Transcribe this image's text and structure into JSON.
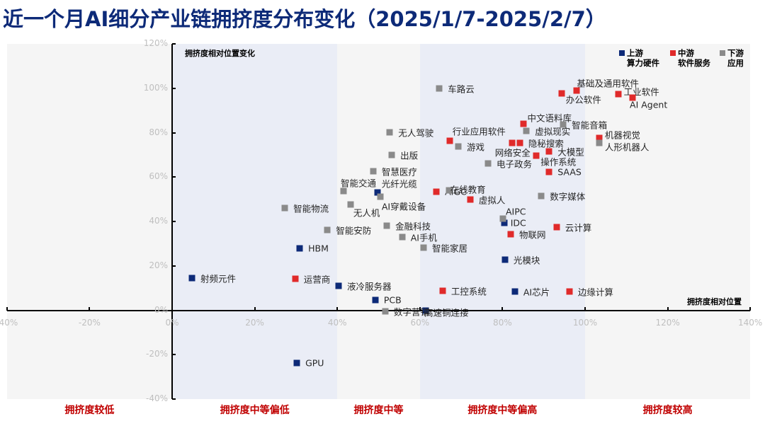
{
  "title": "近一个月AI细分产业链拥挤度分布变化（2025/1/7-2025/2/7）",
  "colors": {
    "upstream": "#0d2a78",
    "midstream": "#e02a2a",
    "downstream": "#8a8a8a",
    "band_light": "#f5f5f5",
    "band_blue": "#eaedf6",
    "zone_label": "#c00000"
  },
  "axes": {
    "y_title": "拥挤度相对位置变化",
    "x_title": "拥挤度相对位置",
    "x_ticks": [
      "-40%",
      "-20%",
      "0%",
      "20%",
      "40%",
      "60%",
      "80%",
      "100%",
      "120%",
      "140%"
    ],
    "y_ticks": [
      "120%",
      "100%",
      "80%",
      "60%",
      "40%",
      "20%",
      "0%",
      "-20%",
      "-40%"
    ]
  },
  "legend": [
    {
      "name": "上游",
      "sub": "算力硬件",
      "key": "upstream"
    },
    {
      "name": "中游",
      "sub": "软件服务",
      "key": "midstream"
    },
    {
      "name": "下游",
      "sub": "应用",
      "key": "downstream"
    }
  ],
  "zones": [
    {
      "label": "拥挤度较低",
      "x": -20
    },
    {
      "label": "拥挤度中等偏低",
      "x": 20
    },
    {
      "label": "拥挤度中等",
      "x": 50
    },
    {
      "label": "拥挤度中等偏高",
      "x": 80
    },
    {
      "label": "拥挤度较高",
      "x": 120
    }
  ],
  "chart_data": {
    "type": "scatter",
    "title": "近一个月AI细分产业链拥挤度分布变化（2025/1/7-2025/2/7）",
    "xlabel": "拥挤度相对位置",
    "ylabel": "拥挤度相对位置变化",
    "xlim": [
      -40,
      140
    ],
    "ylim": [
      -40,
      120
    ],
    "unit": "%",
    "grid": false,
    "legend_position": "top-right",
    "bands_x": [
      [
        -40,
        0,
        "拥挤度较低"
      ],
      [
        0,
        40,
        "拥挤度中等偏低"
      ],
      [
        40,
        60,
        "拥挤度中等"
      ],
      [
        60,
        100,
        "拥挤度中等偏高"
      ],
      [
        100,
        140,
        "拥挤度较高"
      ]
    ],
    "series": [
      {
        "name": "上游 算力硬件",
        "points": [
          {
            "label": "光纤光缆",
            "x": 49.7,
            "y": 53.2
          },
          {
            "label": "IDC",
            "x": 80.4,
            "y": 39.5
          },
          {
            "label": "HBM",
            "x": 30.9,
            "y": 28.0
          },
          {
            "label": "光模块",
            "x": 80.6,
            "y": 22.9
          },
          {
            "label": "射频元件",
            "x": 4.8,
            "y": 14.6
          },
          {
            "label": "液冷服务器",
            "x": 40.3,
            "y": 11.1
          },
          {
            "label": "AI芯片",
            "x": 83.0,
            "y": 8.3
          },
          {
            "label": "PCB",
            "x": 49.2,
            "y": 4.5
          },
          {
            "label": "高速铜连接",
            "x": 61.4,
            "y": -0.3
          },
          {
            "label": "GPU",
            "x": 30.2,
            "y": -23.9
          }
        ]
      },
      {
        "name": "中游 软件服务",
        "points": [
          {
            "label": "基础及通用软件",
            "x": 98.0,
            "y": 99.0
          },
          {
            "label": "办公软件",
            "x": 94.3,
            "y": 97.8
          },
          {
            "label": "工业软件",
            "x": 108.0,
            "y": 97.5
          },
          {
            "label": "AI Agent",
            "x": 111.5,
            "y": 96.0
          },
          {
            "label": "中文语料库",
            "x": 85.0,
            "y": 84.0
          },
          {
            "label": "机器视觉",
            "x": 103.4,
            "y": 77.7
          },
          {
            "label": "行业应用软件",
            "x": 67.2,
            "y": 76.4
          },
          {
            "label": "网络安全",
            "x": 82.3,
            "y": 75.5
          },
          {
            "label": "隐秘搜索",
            "x": 84.2,
            "y": 75.5
          },
          {
            "label": "大模型",
            "x": 91.3,
            "y": 71.7
          },
          {
            "label": "操作系统",
            "x": 88.2,
            "y": 69.7
          },
          {
            "label": "SAAS",
            "x": 91.3,
            "y": 62.4
          },
          {
            "label": "AIGC",
            "x": 64.0,
            "y": 53.5
          },
          {
            "label": "虚拟人",
            "x": 72.2,
            "y": 50.0
          },
          {
            "label": "云计算",
            "x": 93.1,
            "y": 37.6
          },
          {
            "label": "物联网",
            "x": 82.0,
            "y": 34.4
          },
          {
            "label": "运营商",
            "x": 29.8,
            "y": 14.3
          },
          {
            "label": "工控系统",
            "x": 65.5,
            "y": 8.9
          },
          {
            "label": "边缘计算",
            "x": 96.2,
            "y": 8.3
          }
        ]
      },
      {
        "name": "下游 应用",
        "points": [
          {
            "label": "车路云",
            "x": 64.7,
            "y": 100.0
          },
          {
            "label": "智能音箱",
            "x": 94.7,
            "y": 83.8
          },
          {
            "label": "虚拟现实",
            "x": 85.8,
            "y": 81.0
          },
          {
            "label": "无人驾驶",
            "x": 52.7,
            "y": 80.3
          },
          {
            "label": "人形机器人",
            "x": 103.4,
            "y": 75.5
          },
          {
            "label": "游戏",
            "x": 69.3,
            "y": 73.9
          },
          {
            "label": "出版",
            "x": 53.2,
            "y": 70.0
          },
          {
            "label": "电子政务",
            "x": 76.5,
            "y": 66.2
          },
          {
            "label": "智慧医疗",
            "x": 48.7,
            "y": 62.7
          },
          {
            "label": "智能交通",
            "x": 41.5,
            "y": 53.8
          },
          {
            "label": "AI穿戴设备",
            "x": 50.4,
            "y": 51.3
          },
          {
            "label": "在线教育",
            "x": 67.0,
            "y": 54.1
          },
          {
            "label": "数字媒体",
            "x": 89.4,
            "y": 51.6
          },
          {
            "label": "智能物流",
            "x": 27.3,
            "y": 46.2
          },
          {
            "label": "无人机",
            "x": 43.2,
            "y": 47.8
          },
          {
            "label": "AIPC",
            "x": 80.1,
            "y": 41.4
          },
          {
            "label": "金融科技",
            "x": 52.0,
            "y": 38.2
          },
          {
            "label": "智能安防",
            "x": 37.6,
            "y": 36.3
          },
          {
            "label": "AI手机",
            "x": 55.7,
            "y": 33.1
          },
          {
            "label": "智能家居",
            "x": 60.9,
            "y": 28.3
          },
          {
            "label": "数字营销",
            "x": 51.6,
            "y": -0.6
          }
        ]
      }
    ]
  },
  "label_offsets": {
    "车路云": [
      12,
      0
    ],
    "基础及通用软件": [
      0,
      -11
    ],
    "办公软件": [
      6,
      8
    ],
    "工业软件": [
      8,
      -4
    ],
    "AI Agent": [
      -4,
      10
    ],
    "中文语料库": [
      6,
      -9
    ],
    "智能音箱": [
      12,
      0
    ],
    "虚拟现实": [
      12,
      0
    ],
    "无人驾驶": [
      12,
      0
    ],
    "机器视觉": [
      8,
      -5
    ],
    "行业应用软件": [
      4,
      -14
    ],
    "人形机器人": [
      8,
      5
    ],
    "网络安全": [
      -24,
      13
    ],
    "隐秘搜索": [
      12,
      0
    ],
    "游戏": [
      12,
      0
    ],
    "大模型": [
      12,
      0
    ],
    "操作系统": [
      6,
      8
    ],
    "出版": [
      12,
      0
    ],
    "电子政务": [
      12,
      0
    ],
    "智慧医疗": [
      12,
      0
    ],
    "SAAS": [
      12,
      0
    ],
    "智能交通": [
      -4,
      -12
    ],
    "光纤光缆": [
      6,
      -13
    ],
    "AI穿戴设备": [
      2,
      13
    ],
    "AIGC": [
      12,
      0
    ],
    "在线教育": [
      2,
      -2
    ],
    "虚拟人": [
      12,
      0
    ],
    "数字媒体": [
      12,
      0
    ],
    "智能物流": [
      12,
      0
    ],
    "无人机": [
      4,
      11
    ],
    "AIPC": [
      4,
      -10
    ],
    "IDC": [
      9,
      0
    ],
    "云计算": [
      12,
      0
    ],
    "金融科技": [
      12,
      0
    ],
    "智能安防": [
      12,
      0
    ],
    "物联网": [
      12,
      0
    ],
    "AI手机": [
      12,
      0
    ],
    "智能家居": [
      12,
      0
    ],
    "HBM": [
      12,
      0
    ],
    "光模块": [
      12,
      0
    ],
    "射频元件": [
      12,
      0
    ],
    "运营商": [
      12,
      0
    ],
    "液冷服务器": [
      12,
      0
    ],
    "工控系统": [
      12,
      0
    ],
    "AI芯片": [
      12,
      0
    ],
    "边缘计算": [
      12,
      0
    ],
    "PCB": [
      12,
      0
    ],
    "数字营销": [
      12,
      0
    ],
    "高速铜连接": [
      -2,
      2
    ],
    "GPU": [
      12,
      0
    ]
  }
}
